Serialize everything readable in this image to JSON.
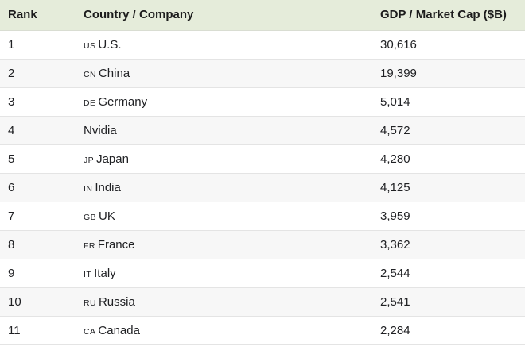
{
  "theme": {
    "header_bg": "#e5ecda",
    "row_alt_bg": "#f7f7f7",
    "divider": "#e4e4e4",
    "text": "#202124"
  },
  "table": {
    "columns": [
      "Rank",
      "Country / Company",
      "GDP / Market Cap ($B)"
    ],
    "rows": [
      {
        "rank": "1",
        "code": "US",
        "name": "U.S.",
        "value": "30,616"
      },
      {
        "rank": "2",
        "code": "CN",
        "name": "China",
        "value": "19,399"
      },
      {
        "rank": "3",
        "code": "DE",
        "name": "Germany",
        "value": "5,014"
      },
      {
        "rank": "4",
        "code": "",
        "name": "Nvidia",
        "value": "4,572"
      },
      {
        "rank": "5",
        "code": "JP",
        "name": "Japan",
        "value": "4,280"
      },
      {
        "rank": "6",
        "code": "IN",
        "name": "India",
        "value": "4,125"
      },
      {
        "rank": "7",
        "code": "GB",
        "name": "UK",
        "value": "3,959"
      },
      {
        "rank": "8",
        "code": "FR",
        "name": "France",
        "value": "3,362"
      },
      {
        "rank": "9",
        "code": "IT",
        "name": "Italy",
        "value": "2,544"
      },
      {
        "rank": "10",
        "code": "RU",
        "name": "Russia",
        "value": "2,541"
      },
      {
        "rank": "11",
        "code": "CA",
        "name": "Canada",
        "value": "2,284"
      }
    ]
  },
  "chart_data": {
    "type": "table",
    "title": "",
    "columns": [
      "Rank",
      "Country / Company",
      "GDP / Market Cap ($B)"
    ],
    "categories": [
      "U.S.",
      "China",
      "Germany",
      "Nvidia",
      "Japan",
      "India",
      "UK",
      "France",
      "Italy",
      "Russia",
      "Canada"
    ],
    "values": [
      30616,
      19399,
      5014,
      4572,
      4280,
      4125,
      3959,
      3362,
      2544,
      2541,
      2284
    ],
    "country_codes": [
      "US",
      "CN",
      "DE",
      "",
      "JP",
      "IN",
      "GB",
      "FR",
      "IT",
      "RU",
      "CA"
    ],
    "ylabel": "GDP / Market Cap ($B)"
  }
}
